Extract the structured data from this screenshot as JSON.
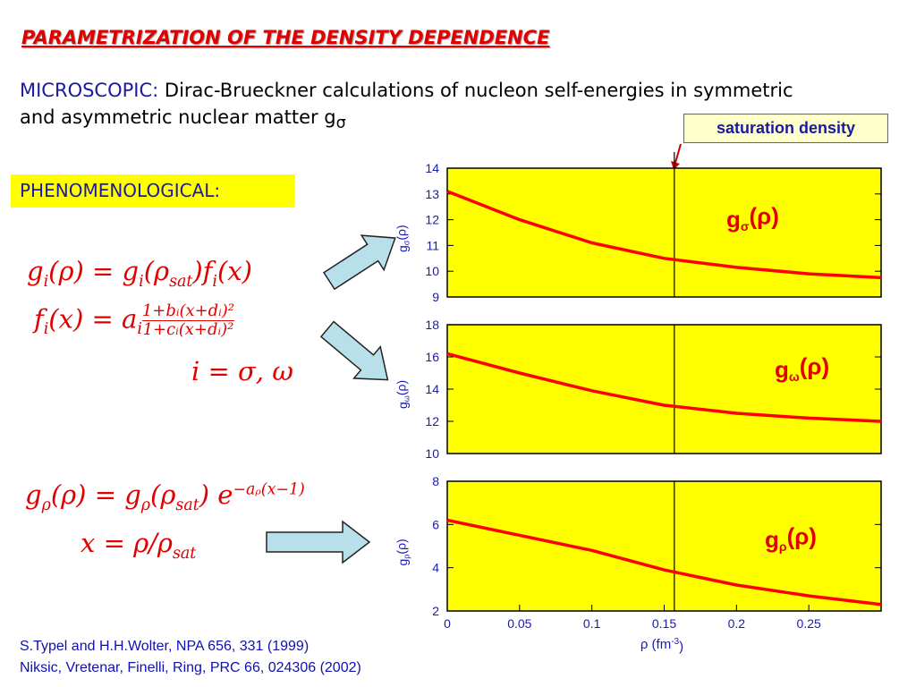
{
  "header": {
    "title": "PARAMETRIZATION OF THE DENSITY DEPENDENCE"
  },
  "microscopic": {
    "label": "MICROSCOPIC:",
    "text": "Dirac-Brueckner calculations of nucleon self-energies in symmetric and asymmetric nuclear matter g",
    "sub": "σ"
  },
  "phenomenological": {
    "label": "PHENOMENOLOGICAL:"
  },
  "formulas": [
    [
      "g",
      {
        "sub": "i"
      },
      "(ρ) = g",
      {
        "sub": "i"
      },
      "(ρ",
      {
        "sub": "sat"
      },
      ")f",
      {
        "sub": "i"
      },
      "(x)"
    ],
    [
      "f",
      {
        "sub": "i"
      },
      "(x) = a",
      {
        "sub": "i"
      },
      {
        "num": "1+bᵢ(x+dᵢ)²",
        "den": "1+cᵢ(x+dᵢ)²"
      }
    ],
    [
      "i = σ, ω"
    ],
    [
      "g",
      {
        "sub": "ρ"
      },
      "(ρ) = g",
      {
        "sub": "ρ"
      },
      "(ρ",
      {
        "sub": "sat"
      },
      ") e",
      {
        "sup": "−aᵨ(x−1)"
      }
    ],
    [
      "x = ρ/ρ",
      {
        "sub": "sat"
      }
    ]
  ],
  "references": [
    "S.Typel and H.H.Wolter, NPA 656, 331 (1999)",
    "Niksic, Vretenar, Finelli, Ring, PRC 66, 024306 (2002)"
  ],
  "chart_data": [
    {
      "type": "line",
      "label": {
        "base": "g",
        "sub": "σ",
        "rest": "(ρ)"
      },
      "y_label": {
        "base": "g",
        "sub": "σ",
        "rest": "(ρ)"
      },
      "annotation": {
        "text": "saturation density",
        "x": 0.157
      },
      "x": [
        0,
        0.05,
        0.1,
        0.15,
        0.2,
        0.25,
        0.3
      ],
      "values": [
        13.1,
        12.0,
        11.1,
        10.5,
        10.15,
        9.9,
        9.75
      ],
      "color": "#ff0000",
      "xlim": [
        0,
        0.3
      ],
      "ylim": [
        9,
        14
      ],
      "yticks": [
        9,
        10,
        11,
        12,
        13,
        14
      ]
    },
    {
      "type": "line",
      "label": {
        "base": "g",
        "sub": "ω",
        "rest": "(ρ)"
      },
      "y_label": {
        "base": "g",
        "sub": "ω",
        "rest": "(ρ)"
      },
      "x": [
        0,
        0.05,
        0.1,
        0.15,
        0.2,
        0.25,
        0.3
      ],
      "values": [
        16.2,
        15.0,
        13.9,
        13.0,
        12.5,
        12.2,
        12.0
      ],
      "color": "#ff0000",
      "xlim": [
        0,
        0.3
      ],
      "ylim": [
        10,
        18
      ],
      "yticks": [
        10,
        12,
        14,
        16,
        18
      ]
    },
    {
      "type": "line",
      "label": {
        "base": "g",
        "sub": "ρ",
        "rest": "(ρ)"
      },
      "y_label": {
        "base": "g",
        "sub": "ρ",
        "rest": "(ρ)"
      },
      "x_label": {
        "base": "ρ (fm",
        "sup": "-3",
        "rest": ")"
      },
      "x": [
        0,
        0.05,
        0.1,
        0.15,
        0.2,
        0.25,
        0.3
      ],
      "values": [
        6.2,
        5.5,
        4.8,
        3.9,
        3.2,
        2.7,
        2.3
      ],
      "color": "#ff0000",
      "xlim": [
        0,
        0.3
      ],
      "ylim": [
        2,
        8
      ],
      "yticks": [
        2,
        4,
        6,
        8
      ],
      "xticks": [
        0,
        0.05,
        0.1,
        0.15,
        0.2,
        0.25
      ]
    }
  ]
}
